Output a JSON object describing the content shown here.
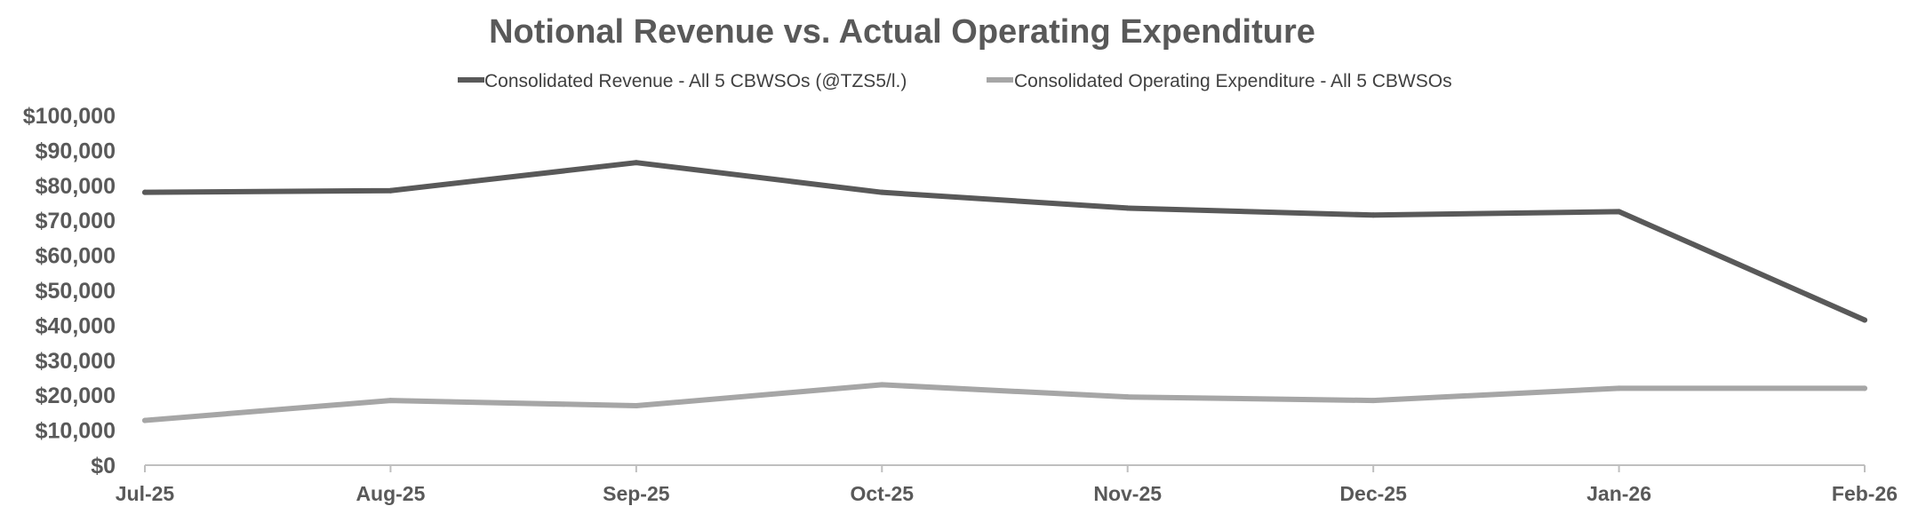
{
  "chart_data": {
    "type": "line",
    "title": "Notional Revenue vs. Actual Operating Expenditure",
    "xlabel": "",
    "ylabel": "",
    "categories": [
      "Jul-25",
      "Aug-25",
      "Sep-25",
      "Oct-25",
      "Nov-25",
      "Dec-25",
      "Jan-26",
      "Feb-26"
    ],
    "ylim": [
      0,
      100000
    ],
    "yticks": [
      0,
      10000,
      20000,
      30000,
      40000,
      50000,
      60000,
      70000,
      80000,
      90000,
      100000
    ],
    "ytick_labels": [
      "$0",
      "$10,000",
      "$20,000",
      "$30,000",
      "$40,000",
      "$50,000",
      "$60,000",
      "$70,000",
      "$80,000",
      "$90,000",
      "$100,000"
    ],
    "grid": false,
    "legend_position": "top-center",
    "series": [
      {
        "name": "Consolidated Revenue - All 5 CBWSOs (@TZS5/l.)",
        "color": "#595959",
        "values": [
          78000,
          78500,
          86500,
          78000,
          73500,
          71500,
          72500,
          41500
        ]
      },
      {
        "name": "Consolidated Operating Expenditure - All 5 CBWSOs",
        "color": "#a6a6a6",
        "values": [
          12800,
          18500,
          17000,
          23000,
          19500,
          18500,
          22000,
          22000
        ]
      }
    ]
  }
}
